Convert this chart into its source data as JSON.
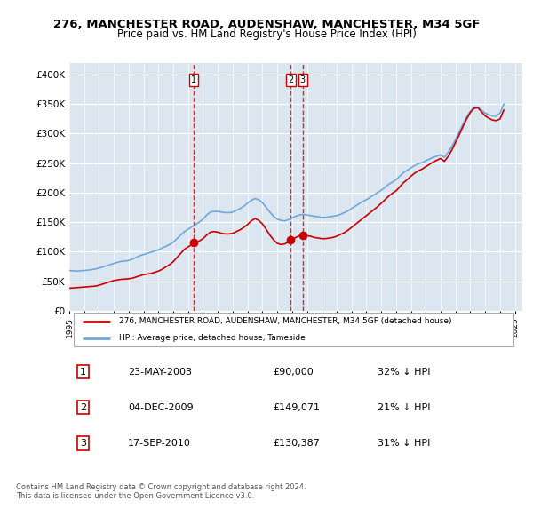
{
  "title": "276, MANCHESTER ROAD, AUDENSHAW, MANCHESTER, M34 5GF",
  "subtitle": "Price paid vs. HM Land Registry's House Price Index (HPI)",
  "ylabel": "",
  "ylim": [
    0,
    420000
  ],
  "yticks": [
    0,
    50000,
    100000,
    150000,
    200000,
    250000,
    300000,
    350000,
    400000
  ],
  "ytick_labels": [
    "£0",
    "£50K",
    "£100K",
    "£150K",
    "£200K",
    "£250K",
    "£300K",
    "£350K",
    "£400K"
  ],
  "bg_color": "#dce6f0",
  "plot_bg": "#dce6f0",
  "line_color_hpi": "#6fa8dc",
  "line_color_price": "#cc0000",
  "transactions": [
    {
      "label": "1",
      "date": "23-MAY-2003",
      "price": 90000,
      "hpi_diff": "32% ↓ HPI",
      "x": 2003.38
    },
    {
      "label": "2",
      "date": "04-DEC-2009",
      "price": 149071,
      "hpi_diff": "21% ↓ HPI",
      "x": 2009.92
    },
    {
      "label": "3",
      "date": "17-SEP-2010",
      "price": 130387,
      "hpi_diff": "31% ↓ HPI",
      "x": 2010.71
    }
  ],
  "legend_entries": [
    "276, MANCHESTER ROAD, AUDENSHAW, MANCHESTER, M34 5GF (detached house)",
    "HPI: Average price, detached house, Tameside"
  ],
  "footer": "Contains HM Land Registry data © Crown copyright and database right 2024.\nThis data is licensed under the Open Government Licence v3.0.",
  "hpi_data": {
    "years": [
      1995.0,
      1995.25,
      1995.5,
      1995.75,
      1996.0,
      1996.25,
      1996.5,
      1996.75,
      1997.0,
      1997.25,
      1997.5,
      1997.75,
      1998.0,
      1998.25,
      1998.5,
      1998.75,
      1999.0,
      1999.25,
      1999.5,
      1999.75,
      2000.0,
      2000.25,
      2000.5,
      2000.75,
      2001.0,
      2001.25,
      2001.5,
      2001.75,
      2002.0,
      2002.25,
      2002.5,
      2002.75,
      2003.0,
      2003.25,
      2003.5,
      2003.75,
      2004.0,
      2004.25,
      2004.5,
      2004.75,
      2005.0,
      2005.25,
      2005.5,
      2005.75,
      2006.0,
      2006.25,
      2006.5,
      2006.75,
      2007.0,
      2007.25,
      2007.5,
      2007.75,
      2008.0,
      2008.25,
      2008.5,
      2008.75,
      2009.0,
      2009.25,
      2009.5,
      2009.75,
      2010.0,
      2010.25,
      2010.5,
      2010.75,
      2011.0,
      2011.25,
      2011.5,
      2011.75,
      2012.0,
      2012.25,
      2012.5,
      2012.75,
      2013.0,
      2013.25,
      2013.5,
      2013.75,
      2014.0,
      2014.25,
      2014.5,
      2014.75,
      2015.0,
      2015.25,
      2015.5,
      2015.75,
      2016.0,
      2016.25,
      2016.5,
      2016.75,
      2017.0,
      2017.25,
      2017.5,
      2017.75,
      2018.0,
      2018.25,
      2018.5,
      2018.75,
      2019.0,
      2019.25,
      2019.5,
      2019.75,
      2020.0,
      2020.25,
      2020.5,
      2020.75,
      2021.0,
      2021.25,
      2021.5,
      2021.75,
      2022.0,
      2022.25,
      2022.5,
      2022.75,
      2023.0,
      2023.25,
      2023.5,
      2023.75,
      2024.0,
      2024.25
    ],
    "values": [
      68000,
      67500,
      67000,
      67500,
      68000,
      68500,
      69500,
      70500,
      72000,
      74000,
      76000,
      78000,
      80000,
      82000,
      83500,
      84000,
      85000,
      87000,
      90000,
      93000,
      95000,
      97000,
      99000,
      101000,
      103000,
      106000,
      109000,
      112000,
      116000,
      122000,
      128000,
      134000,
      138000,
      142000,
      146000,
      150000,
      155000,
      162000,
      167000,
      168000,
      168000,
      167000,
      166000,
      166000,
      167000,
      170000,
      173000,
      177000,
      182000,
      187000,
      190000,
      188000,
      183000,
      175000,
      167000,
      160000,
      155000,
      153000,
      152000,
      154000,
      157000,
      160000,
      162000,
      163000,
      162000,
      161000,
      160000,
      159000,
      158000,
      158000,
      159000,
      160000,
      161000,
      163000,
      166000,
      169000,
      173000,
      177000,
      181000,
      185000,
      188000,
      192000,
      196000,
      200000,
      204000,
      209000,
      214000,
      218000,
      222000,
      228000,
      234000,
      238000,
      242000,
      246000,
      249000,
      251000,
      254000,
      257000,
      260000,
      262000,
      264000,
      260000,
      268000,
      278000,
      290000,
      303000,
      316000,
      328000,
      338000,
      345000,
      345000,
      340000,
      335000,
      332000,
      330000,
      330000,
      335000,
      350000
    ]
  },
  "price_data": {
    "years": [
      1995.0,
      1995.25,
      1995.5,
      1995.75,
      1996.0,
      1996.25,
      1996.5,
      1996.75,
      1997.0,
      1997.25,
      1997.5,
      1997.75,
      1998.0,
      1998.25,
      1998.5,
      1998.75,
      1999.0,
      1999.25,
      1999.5,
      1999.75,
      2000.0,
      2000.25,
      2000.5,
      2000.75,
      2001.0,
      2001.25,
      2001.5,
      2001.75,
      2002.0,
      2002.25,
      2002.5,
      2002.75,
      2003.0,
      2003.25,
      2003.5,
      2003.75,
      2004.0,
      2004.25,
      2004.5,
      2004.75,
      2005.0,
      2005.25,
      2005.5,
      2005.75,
      2006.0,
      2006.25,
      2006.5,
      2006.75,
      2007.0,
      2007.25,
      2007.5,
      2007.75,
      2008.0,
      2008.25,
      2008.5,
      2008.75,
      2009.0,
      2009.25,
      2009.5,
      2009.75,
      2010.0,
      2010.25,
      2010.5,
      2010.75,
      2011.0,
      2011.25,
      2011.5,
      2011.75,
      2012.0,
      2012.25,
      2012.5,
      2012.75,
      2013.0,
      2013.25,
      2013.5,
      2013.75,
      2014.0,
      2014.25,
      2014.5,
      2014.75,
      2015.0,
      2015.25,
      2015.5,
      2015.75,
      2016.0,
      2016.25,
      2016.5,
      2016.75,
      2017.0,
      2017.25,
      2017.5,
      2017.75,
      2018.0,
      2018.25,
      2018.5,
      2018.75,
      2019.0,
      2019.25,
      2019.5,
      2019.75,
      2020.0,
      2020.25,
      2020.5,
      2020.75,
      2021.0,
      2021.25,
      2021.5,
      2021.75,
      2022.0,
      2022.25,
      2022.5,
      2022.75,
      2023.0,
      2023.25,
      2023.5,
      2023.75,
      2024.0,
      2024.25
    ],
    "values": [
      38000,
      38500,
      39000,
      39500,
      40000,
      40500,
      41000,
      41500,
      43000,
      45000,
      47000,
      49000,
      51000,
      52000,
      53000,
      53500,
      54000,
      55000,
      57000,
      59000,
      61000,
      62000,
      63000,
      65000,
      67000,
      70000,
      74000,
      78000,
      83000,
      90000,
      97000,
      104000,
      108000,
      112000,
      116000,
      118000,
      122000,
      128000,
      133000,
      134000,
      133000,
      131000,
      130000,
      130000,
      131000,
      134000,
      137000,
      141000,
      146000,
      152000,
      156000,
      153000,
      147000,
      138000,
      128000,
      120000,
      114000,
      112000,
      113000,
      116000,
      120000,
      124000,
      127000,
      128000,
      127000,
      126000,
      124000,
      123000,
      122000,
      122000,
      123000,
      124000,
      126000,
      129000,
      132000,
      136000,
      141000,
      146000,
      151000,
      156000,
      161000,
      166000,
      171000,
      176000,
      182000,
      188000,
      194000,
      199000,
      203000,
      210000,
      217000,
      222000,
      228000,
      233000,
      237000,
      240000,
      244000,
      248000,
      252000,
      255000,
      258000,
      253000,
      261000,
      272000,
      285000,
      298000,
      312000,
      325000,
      336000,
      343000,
      344000,
      337000,
      330000,
      326000,
      323000,
      322000,
      325000,
      340000
    ]
  }
}
